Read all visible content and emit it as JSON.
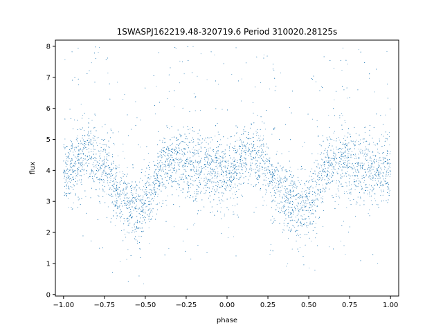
{
  "chart_data": {
    "type": "scatter",
    "title": "1SWASPJ162219.48-320719.6 Period 310020.28125s",
    "xlabel": "phase",
    "ylabel": "flux",
    "xlim": [
      -1.05,
      1.05
    ],
    "ylim": [
      -0.05,
      8.2
    ],
    "xticks": [
      -1.0,
      -0.75,
      -0.5,
      -0.25,
      0.0,
      0.25,
      0.5,
      0.75,
      1.0
    ],
    "xtick_labels": [
      "−1.00",
      "−0.75",
      "−0.50",
      "−0.25",
      "0.00",
      "0.25",
      "0.50",
      "0.75",
      "1.00"
    ],
    "yticks": [
      0,
      1,
      2,
      3,
      4,
      5,
      6,
      7,
      8
    ],
    "ytick_labels": [
      "0",
      "1",
      "2",
      "3",
      "4",
      "5",
      "6",
      "7",
      "8"
    ],
    "grid": false,
    "point_color": "#1f77b4",
    "series": [
      {
        "phase_range": [
          -1.0,
          1.0
        ],
        "flux_baseline": 4.1,
        "flux_spread": 0.55,
        "dip_phases": [
          -0.55,
          0.45
        ],
        "dip_min_flux": 2.6,
        "sample_points": [
          {
            "x": -1.0,
            "y": 3.9
          },
          {
            "x": -0.95,
            "y": 4.0
          },
          {
            "x": -0.9,
            "y": 4.3
          },
          {
            "x": -0.85,
            "y": 4.6
          },
          {
            "x": -0.8,
            "y": 4.2
          },
          {
            "x": -0.75,
            "y": 4.1
          },
          {
            "x": -0.7,
            "y": 3.6
          },
          {
            "x": -0.65,
            "y": 3.2
          },
          {
            "x": -0.6,
            "y": 2.9
          },
          {
            "x": -0.55,
            "y": 2.6
          },
          {
            "x": -0.5,
            "y": 2.9
          },
          {
            "x": -0.45,
            "y": 3.4
          },
          {
            "x": -0.4,
            "y": 4.0
          },
          {
            "x": -0.35,
            "y": 4.2
          },
          {
            "x": -0.3,
            "y": 4.3
          },
          {
            "x": -0.25,
            "y": 4.2
          },
          {
            "x": -0.2,
            "y": 4.1
          },
          {
            "x": -0.15,
            "y": 4.0
          },
          {
            "x": -0.1,
            "y": 4.0
          },
          {
            "x": -0.05,
            "y": 4.0
          },
          {
            "x": 0.0,
            "y": 3.9
          },
          {
            "x": 0.05,
            "y": 4.0
          },
          {
            "x": 0.1,
            "y": 4.3
          },
          {
            "x": 0.15,
            "y": 4.6
          },
          {
            "x": 0.2,
            "y": 4.2
          },
          {
            "x": 0.25,
            "y": 4.1
          },
          {
            "x": 0.3,
            "y": 3.6
          },
          {
            "x": 0.35,
            "y": 3.2
          },
          {
            "x": 0.4,
            "y": 2.9
          },
          {
            "x": 0.45,
            "y": 2.6
          },
          {
            "x": 0.5,
            "y": 2.9
          },
          {
            "x": 0.55,
            "y": 3.4
          },
          {
            "x": 0.6,
            "y": 4.0
          },
          {
            "x": 0.65,
            "y": 4.2
          },
          {
            "x": 0.7,
            "y": 4.3
          },
          {
            "x": 0.75,
            "y": 4.2
          },
          {
            "x": 0.8,
            "y": 4.1
          },
          {
            "x": 0.85,
            "y": 4.0
          },
          {
            "x": 0.9,
            "y": 4.0
          },
          {
            "x": 0.95,
            "y": 4.0
          },
          {
            "x": 1.0,
            "y": 3.9
          }
        ]
      }
    ]
  }
}
